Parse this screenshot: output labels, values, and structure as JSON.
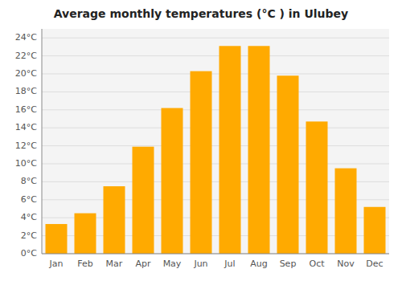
{
  "chart_data": {
    "type": "bar",
    "title": "Average monthly temperatures (°C ) in Ulubey",
    "categories": [
      "Jan",
      "Feb",
      "Mar",
      "Apr",
      "May",
      "Jun",
      "Jul",
      "Aug",
      "Sep",
      "Oct",
      "Nov",
      "Dec"
    ],
    "values": [
      3.3,
      4.5,
      7.5,
      11.9,
      16.2,
      20.3,
      23.1,
      23.1,
      19.8,
      14.7,
      9.5,
      5.2
    ],
    "color": "#FFAA00",
    "ylim": [
      0,
      25
    ],
    "yticks": [
      {
        "value": 0,
        "label": "0°C"
      },
      {
        "value": 2,
        "label": "2°C"
      },
      {
        "value": 4,
        "label": "4°C"
      },
      {
        "value": 6,
        "label": "6°C"
      },
      {
        "value": 8,
        "label": "8°C"
      },
      {
        "value": 10,
        "label": "10°C"
      },
      {
        "value": 12,
        "label": "12°C"
      },
      {
        "value": 14,
        "label": "14°C"
      },
      {
        "value": 16,
        "label": "16°C"
      },
      {
        "value": 18,
        "label": "18°C"
      },
      {
        "value": 20,
        "label": "20°C"
      },
      {
        "value": 22,
        "label": "22°C"
      },
      {
        "value": 24,
        "label": "24°C"
      }
    ],
    "grid": true
  }
}
